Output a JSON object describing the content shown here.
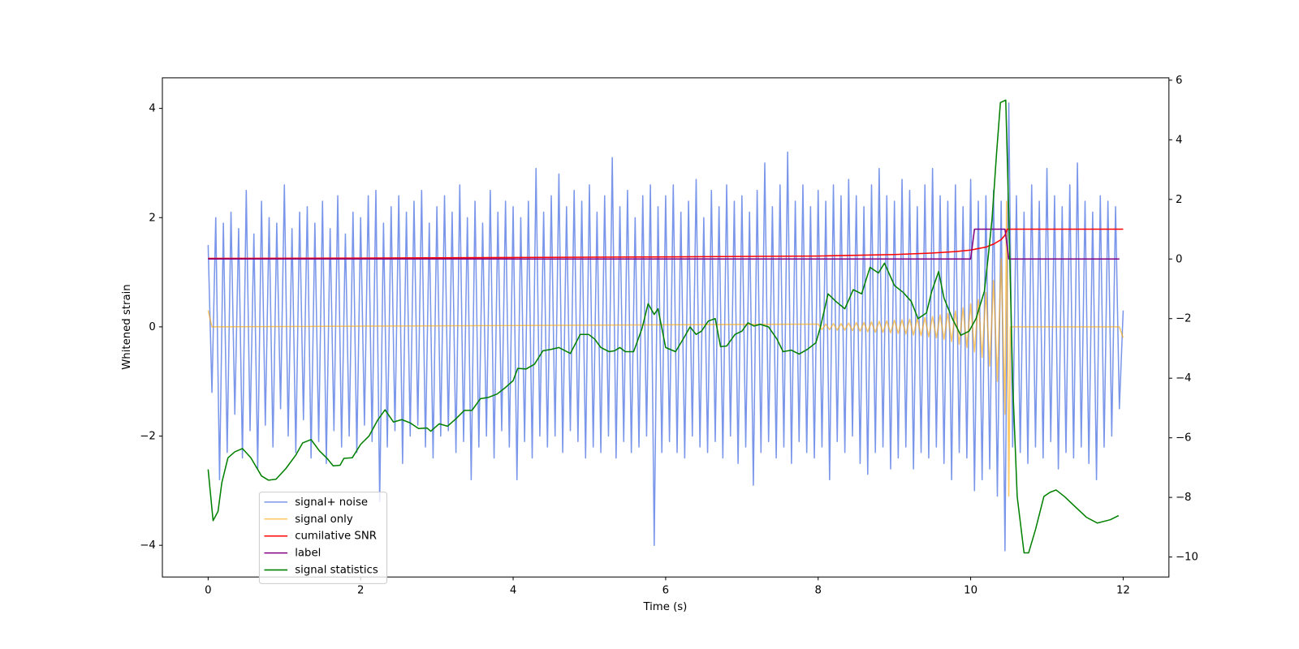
{
  "chart_data": {
    "type": "line",
    "xlabel": "Time (s)",
    "ylabel": "Whitened strain",
    "xlim": [
      -0.6,
      12.6
    ],
    "ylim": [
      -4.58,
      4.56
    ],
    "y2lim": [
      -10.67,
      6.08
    ],
    "xticks": [
      0,
      2,
      4,
      6,
      8,
      10,
      12
    ],
    "yticks": [
      {
        "value": -4,
        "label": "−4"
      },
      {
        "value": -2,
        "label": "−2"
      },
      0,
      2,
      4
    ],
    "y2ticks": [
      {
        "value": -10,
        "label": "−10"
      },
      {
        "value": -8,
        "label": "−8"
      },
      {
        "value": -6,
        "label": "−6"
      },
      {
        "value": -4,
        "label": "−4"
      },
      {
        "value": -2,
        "label": "−2"
      },
      0,
      2,
      4,
      6
    ],
    "grid": false,
    "legend": "lower left",
    "series": [
      {
        "name": "signal+ noise",
        "color": "#4169e1",
        "alpha": 0.7,
        "x": [
          0,
          0.05,
          0.1,
          0.15,
          0.2,
          0.25,
          0.3,
          0.35,
          0.4,
          0.45,
          0.5,
          0.55,
          0.6,
          0.65,
          0.7,
          0.75,
          0.8,
          0.85,
          0.9,
          0.95,
          1,
          1.05,
          1.1,
          1.15,
          1.2,
          1.25,
          1.3,
          1.35,
          1.4,
          1.45,
          1.5,
          1.55,
          1.6,
          1.65,
          1.7,
          1.75,
          1.8,
          1.85,
          1.9,
          1.95,
          2,
          2.05,
          2.1,
          2.15,
          2.2,
          2.25,
          2.3,
          2.35,
          2.4,
          2.45,
          2.5,
          2.55,
          2.6,
          2.65,
          2.7,
          2.75,
          2.8,
          2.85,
          2.9,
          2.95,
          3,
          3.05,
          3.1,
          3.15,
          3.2,
          3.25,
          3.3,
          3.35,
          3.4,
          3.45,
          3.5,
          3.55,
          3.6,
          3.65,
          3.7,
          3.75,
          3.8,
          3.85,
          3.9,
          3.95,
          4,
          4.05,
          4.1,
          4.15,
          4.2,
          4.25,
          4.3,
          4.35,
          4.4,
          4.45,
          4.5,
          4.55,
          4.6,
          4.65,
          4.7,
          4.75,
          4.8,
          4.85,
          4.9,
          4.95,
          5,
          5.05,
          5.1,
          5.15,
          5.2,
          5.25,
          5.3,
          5.35,
          5.4,
          5.45,
          5.5,
          5.55,
          5.6,
          5.65,
          5.7,
          5.75,
          5.8,
          5.85,
          5.9,
          5.95,
          6,
          6.05,
          6.1,
          6.15,
          6.2,
          6.25,
          6.3,
          6.35,
          6.4,
          6.45,
          6.5,
          6.55,
          6.6,
          6.65,
          6.7,
          6.75,
          6.8,
          6.85,
          6.9,
          6.95,
          7,
          7.05,
          7.1,
          7.15,
          7.2,
          7.25,
          7.3,
          7.35,
          7.4,
          7.45,
          7.5,
          7.55,
          7.6,
          7.65,
          7.7,
          7.75,
          7.8,
          7.85,
          7.9,
          7.95,
          8,
          8.05,
          8.1,
          8.15,
          8.2,
          8.25,
          8.3,
          8.35,
          8.4,
          8.45,
          8.5,
          8.55,
          8.6,
          8.65,
          8.7,
          8.75,
          8.8,
          8.85,
          8.9,
          8.95,
          9,
          9.05,
          9.1,
          9.15,
          9.2,
          9.25,
          9.3,
          9.35,
          9.4,
          9.45,
          9.5,
          9.55,
          9.6,
          9.65,
          9.7,
          9.75,
          9.8,
          9.85,
          9.9,
          9.95,
          10,
          10.05,
          10.1,
          10.15,
          10.2,
          10.25,
          10.3,
          10.35,
          10.4,
          10.45,
          10.5,
          10.55,
          10.6,
          10.65,
          10.7,
          10.75,
          10.8,
          10.85,
          10.9,
          10.95,
          11,
          11.05,
          11.1,
          11.15,
          11.2,
          11.25,
          11.3,
          11.35,
          11.4,
          11.45,
          11.5,
          11.55,
          11.6,
          11.65,
          11.7,
          11.75,
          11.8,
          11.85,
          11.9,
          11.95,
          12
        ],
        "values": [
          1.5,
          -1.2,
          2.0,
          -2.8,
          1.9,
          -2.3,
          2.1,
          -1.6,
          1.8,
          -2.4,
          2.5,
          -1.9,
          1.7,
          -2.6,
          2.3,
          -1.8,
          2.0,
          -2.2,
          1.9,
          -1.5,
          2.6,
          -2.0,
          1.8,
          -2.3,
          2.1,
          -1.7,
          2.2,
          -2.4,
          1.9,
          -2.1,
          2.3,
          -2.5,
          1.8,
          -1.9,
          2.4,
          -2.2,
          1.7,
          -2.0,
          2.1,
          -2.3,
          2.0,
          -1.8,
          2.4,
          -2.1,
          2.5,
          -3.2,
          1.9,
          -2.2,
          2.2,
          -1.9,
          2.4,
          -2.5,
          2.1,
          -2.0,
          2.3,
          -1.8,
          2.5,
          -2.2,
          1.9,
          -2.4,
          2.2,
          -2.0,
          2.4,
          -1.9,
          2.1,
          -2.3,
          2.6,
          -2.1,
          2.0,
          -2.8,
          2.3,
          -2.2,
          1.9,
          -2.0,
          2.5,
          -2.4,
          2.1,
          -1.9,
          2.3,
          -2.2,
          2.2,
          -2.8,
          2.0,
          -2.1,
          2.3,
          -2.4,
          2.9,
          -2.0,
          2.1,
          -2.2,
          2.4,
          -2.0,
          2.8,
          -2.3,
          2.2,
          -1.9,
          2.5,
          -2.1,
          2.3,
          -2.4,
          2.6,
          -2.2,
          2.1,
          -2.3,
          2.4,
          -2.0,
          3.1,
          -2.4,
          2.2,
          -2.1,
          2.5,
          -2.3,
          2.0,
          -2.2,
          2.4,
          -2.0,
          2.6,
          -4.0,
          2.2,
          -2.3,
          2.4,
          -2.1,
          2.6,
          -2.3,
          2.1,
          -2.4,
          2.3,
          -2.0,
          2.7,
          -2.2,
          2.0,
          -2.3,
          2.5,
          -2.1,
          2.2,
          -2.4,
          2.6,
          -2.0,
          2.3,
          -2.5,
          2.4,
          -2.2,
          2.1,
          -2.9,
          2.5,
          -2.3,
          3.0,
          -2.1,
          2.2,
          -2.4,
          2.6,
          -2.2,
          3.2,
          -2.5,
          2.3,
          -2.1,
          2.6,
          -2.3,
          2.2,
          -2.4,
          2.5,
          -2.2,
          2.3,
          -2.8,
          2.6,
          -2.1,
          2.4,
          -2.3,
          2.7,
          -2.0,
          2.4,
          -2.5,
          2.2,
          -2.7,
          2.6,
          -2.3,
          2.9,
          -2.2,
          2.4,
          -2.6,
          2.3,
          -2.4,
          2.7,
          -2.2,
          2.5,
          -2.6,
          2.2,
          -2.3,
          2.6,
          -2.4,
          2.9,
          -2.2,
          2.4,
          -2.5,
          2.3,
          -2.8,
          2.6,
          -2.3,
          2.2,
          -2.4,
          2.7,
          -3.0,
          2.3,
          -2.8,
          2.4,
          -2.6,
          2.5,
          -3.1,
          2.3,
          -4.1,
          4.1,
          -2.2,
          2.4,
          -2.3,
          2.1,
          -2.5,
          2.6,
          -2.2,
          2.3,
          -2.4,
          2.9,
          -2.1,
          2.4,
          -2.6,
          2.2,
          -2.3,
          2.6,
          -2.4,
          3.0,
          -2.2,
          2.3,
          -2.5,
          2.1,
          -2.8,
          2.4,
          -2.2,
          2.3,
          -2.0,
          2.2,
          -1.5,
          0.3
        ]
      },
      {
        "name": "signal only",
        "color": "#ffa500",
        "alpha": 0.6,
        "x": [
          0,
          0.05,
          8,
          8.05,
          8.1,
          8.15,
          8.2,
          8.25,
          8.3,
          8.35,
          8.4,
          8.45,
          8.5,
          8.55,
          8.6,
          8.65,
          8.7,
          8.75,
          8.8,
          8.85,
          8.9,
          8.95,
          9,
          9.05,
          9.1,
          9.15,
          9.2,
          9.25,
          9.3,
          9.35,
          9.4,
          9.45,
          9.5,
          9.55,
          9.6,
          9.65,
          9.7,
          9.75,
          9.8,
          9.85,
          9.9,
          9.95,
          10,
          10.05,
          10.1,
          10.15,
          10.2,
          10.25,
          10.3,
          10.35,
          10.4,
          10.45,
          10.47,
          10.5,
          10.52,
          11.95,
          12
        ],
        "values": [
          0.3,
          0,
          0.05,
          -0.05,
          0.05,
          -0.05,
          0.06,
          -0.06,
          0.06,
          -0.06,
          0.07,
          -0.07,
          0.08,
          -0.08,
          0.08,
          -0.09,
          0.09,
          -0.1,
          0.1,
          -0.1,
          0.11,
          -0.11,
          0.12,
          -0.12,
          0.13,
          -0.13,
          0.14,
          -0.15,
          0.15,
          -0.16,
          0.17,
          -0.18,
          0.19,
          -0.2,
          0.22,
          -0.23,
          0.25,
          -0.27,
          0.29,
          -0.32,
          0.35,
          -0.38,
          0.42,
          -0.46,
          0.5,
          -0.56,
          0.63,
          -0.72,
          0.85,
          -1.0,
          1.25,
          -1.6,
          2.3,
          -3.1,
          0,
          0,
          -0.2
        ]
      },
      {
        "name": "cumilative SNR",
        "color": "#ff0000",
        "alpha": 1,
        "axis": "y2",
        "x": [
          0,
          2,
          4,
          6,
          8,
          9,
          9.5,
          9.8,
          10,
          10.1,
          10.2,
          10.3,
          10.4,
          10.45,
          10.48,
          12
        ],
        "values": [
          0.02,
          0.03,
          0.05,
          0.07,
          0.1,
          0.15,
          0.2,
          0.25,
          0.3,
          0.35,
          0.4,
          0.5,
          0.65,
          0.8,
          1.0,
          1.0
        ]
      },
      {
        "name": "label",
        "color": "#800080",
        "alpha": 1,
        "axis": "y2",
        "x": [
          0,
          10,
          10.05,
          10.45,
          10.5,
          11.95
        ],
        "values": [
          0,
          0,
          1,
          1,
          0,
          0
        ]
      },
      {
        "name": "signal statistics",
        "color": "#008000",
        "alpha": 1,
        "axis": "y2",
        "x": [
          0,
          0.065,
          0.13,
          0.18,
          0.26,
          0.35,
          0.45,
          0.56,
          0.7,
          0.79,
          0.89,
          1.02,
          1.15,
          1.24,
          1.35,
          1.46,
          1.56,
          1.64,
          1.73,
          1.78,
          1.89,
          2.0,
          2.11,
          2.22,
          2.32,
          2.43,
          2.54,
          2.65,
          2.76,
          2.87,
          2.92,
          3.03,
          3.14,
          3.25,
          3.36,
          3.46,
          3.57,
          3.68,
          3.79,
          3.9,
          4.0,
          4.06,
          4.17,
          4.28,
          4.39,
          4.5,
          4.6,
          4.75,
          4.88,
          4.99,
          5.07,
          5.15,
          5.26,
          5.33,
          5.4,
          5.47,
          5.58,
          5.69,
          5.77,
          5.85,
          5.9,
          6.0,
          6.13,
          6.24,
          6.32,
          6.4,
          6.47,
          6.56,
          6.65,
          6.72,
          6.8,
          6.91,
          7.0,
          7.08,
          7.16,
          7.24,
          7.35,
          7.46,
          7.54,
          7.65,
          7.75,
          7.86,
          7.97,
          8.03,
          8.13,
          8.24,
          8.35,
          8.46,
          8.57,
          8.68,
          8.79,
          8.87,
          9.0,
          9.11,
          9.22,
          9.31,
          9.42,
          9.49,
          9.58,
          9.65,
          9.76,
          9.87,
          9.98,
          10.07,
          10.18,
          10.23,
          10.28,
          10.34,
          10.39,
          10.46,
          10.5,
          10.55,
          10.61,
          10.7,
          10.76,
          10.85,
          10.96,
          11.04,
          11.12,
          11.23,
          11.37,
          11.52,
          11.66,
          11.83,
          11.94
        ],
        "values": [
          -7.06,
          -8.78,
          -8.47,
          -7.5,
          -6.67,
          -6.47,
          -6.36,
          -6.67,
          -7.28,
          -7.42,
          -7.39,
          -7.03,
          -6.58,
          -6.17,
          -6.06,
          -6.44,
          -6.69,
          -6.94,
          -6.92,
          -6.69,
          -6.67,
          -6.22,
          -5.94,
          -5.42,
          -5.06,
          -5.47,
          -5.39,
          -5.5,
          -5.69,
          -5.67,
          -5.78,
          -5.53,
          -5.61,
          -5.36,
          -5.08,
          -5.08,
          -4.69,
          -4.64,
          -4.53,
          -4.31,
          -4.08,
          -3.67,
          -3.69,
          -3.53,
          -3.08,
          -3.03,
          -2.97,
          -3.17,
          -2.53,
          -2.53,
          -2.69,
          -2.97,
          -3.11,
          -3.08,
          -2.97,
          -3.11,
          -3.11,
          -2.33,
          -1.5,
          -1.86,
          -1.67,
          -2.97,
          -3.11,
          -2.64,
          -2.28,
          -2.53,
          -2.42,
          -2.08,
          -2.0,
          -2.94,
          -2.92,
          -2.53,
          -2.42,
          -2.14,
          -2.25,
          -2.19,
          -2.28,
          -2.69,
          -3.11,
          -3.06,
          -3.19,
          -3.03,
          -2.81,
          -2.28,
          -1.17,
          -1.44,
          -1.67,
          -1.03,
          -1.17,
          -0.28,
          -0.47,
          -0.14,
          -0.89,
          -1.11,
          -1.42,
          -2.0,
          -1.81,
          -1.08,
          -0.42,
          -1.31,
          -2.0,
          -2.56,
          -2.42,
          -2.0,
          -1.08,
          0.08,
          1.33,
          3.56,
          5.25,
          5.33,
          1.47,
          -4.08,
          -7.97,
          -9.86,
          -9.86,
          -9.08,
          -7.97,
          -7.83,
          -7.75,
          -7.97,
          -8.31,
          -8.67,
          -8.86,
          -8.75,
          -8.61
        ]
      }
    ]
  }
}
